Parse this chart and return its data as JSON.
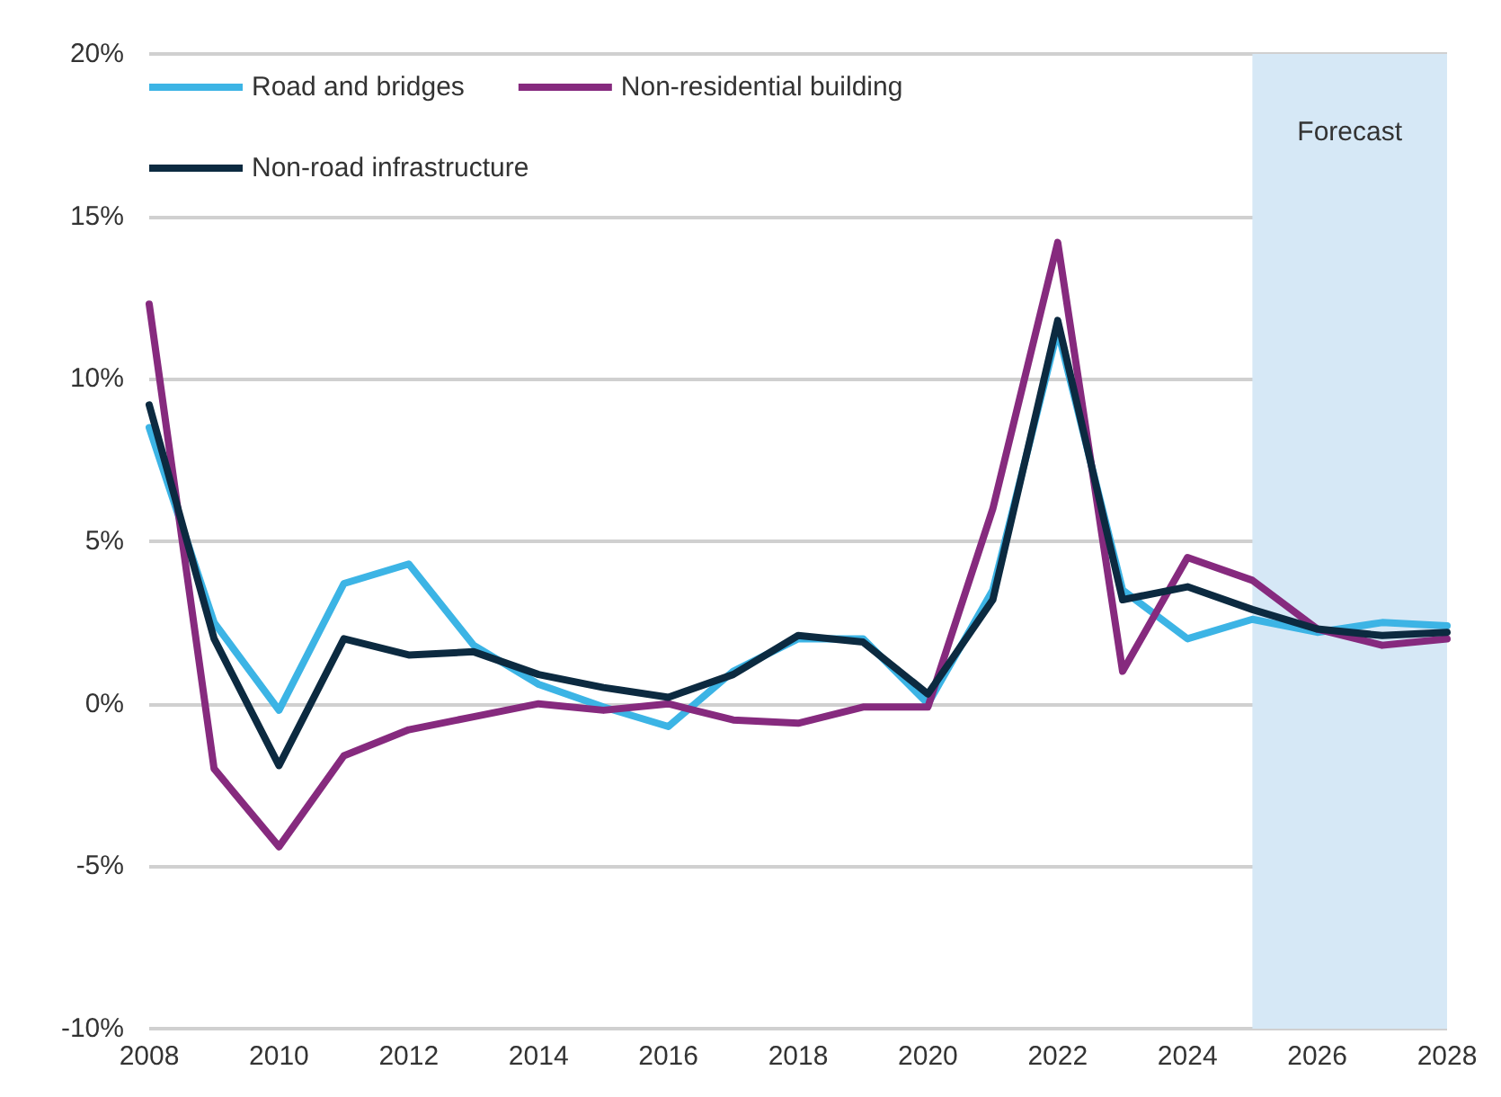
{
  "chart_data": {
    "type": "line",
    "x": [
      2008,
      2009,
      2010,
      2011,
      2012,
      2013,
      2014,
      2015,
      2016,
      2017,
      2018,
      2019,
      2020,
      2021,
      2022,
      2023,
      2024,
      2025,
      2026,
      2027,
      2028
    ],
    "series": [
      {
        "name": "Road and bridges",
        "color": "#3cb4e5",
        "values": [
          8.5,
          2.5,
          -0.2,
          3.7,
          4.3,
          1.8,
          0.6,
          -0.1,
          -0.7,
          1.0,
          2.0,
          2.0,
          0,
          3.5,
          11.5,
          3.5,
          2.0,
          2.6,
          2.2,
          2.5,
          2.4
        ]
      },
      {
        "name": "Non-residential building",
        "color": "#862a7e",
        "values": [
          12.3,
          -2.0,
          -4.4,
          -1.6,
          -0.8,
          -0.4,
          0.0,
          -0.2,
          0.0,
          -0.5,
          -0.6,
          -0.1,
          -0.1,
          6.0,
          14.2,
          1.0,
          4.5,
          3.8,
          2.3,
          1.8,
          2.0
        ]
      },
      {
        "name": "Non-road infrastructure",
        "color": "#0c2a40",
        "values": [
          9.2,
          2.0,
          -1.9,
          2.0,
          1.5,
          1.6,
          0.9,
          0.5,
          0.2,
          0.9,
          2.1,
          1.9,
          0.3,
          3.2,
          11.8,
          3.2,
          3.6,
          2.9,
          2.3,
          2.1,
          2.2
        ]
      }
    ],
    "xlim": [
      2008,
      2028
    ],
    "xticks": [
      2008,
      2010,
      2012,
      2014,
      2016,
      2018,
      2020,
      2022,
      2024,
      2026,
      2028
    ],
    "ylim": [
      -10,
      20
    ],
    "yticks": [
      {
        "value": -10,
        "label": "-10%"
      },
      {
        "value": -5,
        "label": "-5%"
      },
      {
        "value": 0,
        "label": "0%"
      },
      {
        "value": 5,
        "label": "5%"
      },
      {
        "value": 10,
        "label": "10%"
      },
      {
        "value": 15,
        "label": "15%"
      },
      {
        "value": 20,
        "label": "20%"
      }
    ],
    "bands": [
      {
        "axis": "x",
        "from": 2025,
        "to": 2028,
        "label": "Forecast",
        "color": "#d6e8f6"
      }
    ],
    "grid": "y",
    "legend": "top left",
    "marker": "none",
    "line_style": "solid"
  }
}
